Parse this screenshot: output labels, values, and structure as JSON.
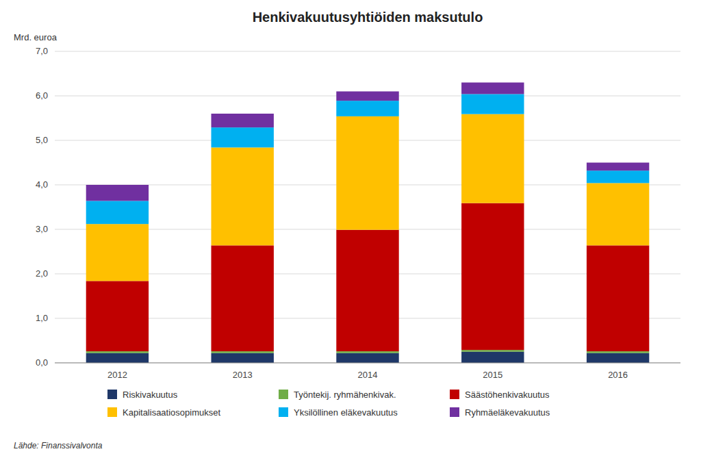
{
  "chart_data": {
    "type": "bar",
    "stacked": true,
    "title": "Henkivakuutusyhtiöiden maksutulo",
    "y_label": "Mrd. euroa",
    "source": "Lähde: Finanssivalvonta",
    "categories": [
      "2012",
      "2013",
      "2014",
      "2015",
      "2016"
    ],
    "series": [
      {
        "name": "Riskivakuutus",
        "color": "#1f3868",
        "values": [
          0.22,
          0.22,
          0.22,
          0.25,
          0.22
        ]
      },
      {
        "name": "Työntekij. ryhmähenkivak.",
        "color": "#70ad47",
        "values": [
          0.04,
          0.04,
          0.04,
          0.04,
          0.04
        ]
      },
      {
        "name": "Säästöhenkivakuutus",
        "color": "#c00000",
        "values": [
          1.58,
          2.38,
          2.73,
          3.3,
          2.38
        ]
      },
      {
        "name": "Kapitalisaatiosopimukset",
        "color": "#ffc000",
        "values": [
          1.28,
          2.2,
          2.55,
          2.0,
          1.4
        ]
      },
      {
        "name": "Yksilöllinen eläkevakuutus",
        "color": "#00b0f0",
        "values": [
          0.52,
          0.45,
          0.35,
          0.45,
          0.28
        ]
      },
      {
        "name": "Ryhmäeläkevakuutus",
        "color": "#7030a0",
        "values": [
          0.36,
          0.31,
          0.21,
          0.26,
          0.18
        ]
      }
    ],
    "ylim": [
      0,
      7.0
    ],
    "yticks": [
      {
        "value": 0.0,
        "label": "0,0"
      },
      {
        "value": 1.0,
        "label": "1,0"
      },
      {
        "value": 2.0,
        "label": "2,0"
      },
      {
        "value": 3.0,
        "label": "3,0"
      },
      {
        "value": 4.0,
        "label": "4,0"
      },
      {
        "value": 5.0,
        "label": "5,0"
      },
      {
        "value": 6.0,
        "label": "6,0"
      },
      {
        "value": 7.0,
        "label": "7,0"
      }
    ],
    "grid": true,
    "legend": "bottom"
  }
}
